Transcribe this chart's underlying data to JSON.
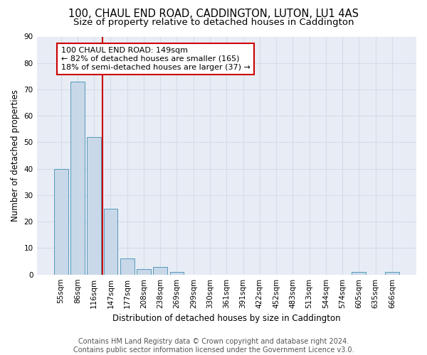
{
  "title": "100, CHAUL END ROAD, CADDINGTON, LUTON, LU1 4AS",
  "subtitle": "Size of property relative to detached houses in Caddington",
  "xlabel": "Distribution of detached houses by size in Caddington",
  "ylabel": "Number of detached properties",
  "categories": [
    "55sqm",
    "86sqm",
    "116sqm",
    "147sqm",
    "177sqm",
    "208sqm",
    "238sqm",
    "269sqm",
    "299sqm",
    "330sqm",
    "361sqm",
    "391sqm",
    "422sqm",
    "452sqm",
    "483sqm",
    "513sqm",
    "544sqm",
    "574sqm",
    "605sqm",
    "635sqm",
    "666sqm"
  ],
  "values": [
    40,
    73,
    52,
    25,
    6,
    2,
    3,
    1,
    0,
    0,
    0,
    0,
    0,
    0,
    0,
    0,
    0,
    0,
    1,
    0,
    1
  ],
  "bar_color": "#c8d8e8",
  "bar_edge_color": "#5599bb",
  "vline_index": 2.5,
  "vline_color": "#cc0000",
  "annotation_text": "100 CHAUL END ROAD: 149sqm\n← 82% of detached houses are smaller (165)\n18% of semi-detached houses are larger (37) →",
  "annotation_box_facecolor": "#ffffff",
  "annotation_box_edgecolor": "#cc0000",
  "ylim": [
    0,
    90
  ],
  "yticks": [
    0,
    10,
    20,
    30,
    40,
    50,
    60,
    70,
    80,
    90
  ],
  "grid_color": "#d4dce8",
  "background_color": "#e8edf5",
  "footer_text": "Contains HM Land Registry data © Crown copyright and database right 2024.\nContains public sector information licensed under the Government Licence v3.0.",
  "title_fontsize": 10.5,
  "subtitle_fontsize": 9.5,
  "axis_label_fontsize": 8.5,
  "tick_fontsize": 7.5,
  "annotation_fontsize": 8,
  "footer_fontsize": 7
}
